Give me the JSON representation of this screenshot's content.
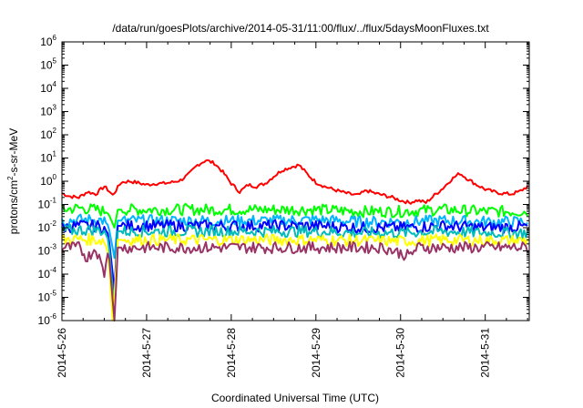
{
  "chart_data": {
    "type": "line",
    "title": "/data/run/goesPlots/archive/2014-05-31/11:00/flux/../flux/5daysMoonFluxes.txt",
    "xlabel": "Coordinated Universal Time (UTC)",
    "ylabel": {
      "base": "protons/cm",
      "sup": "2",
      "rest": "-s-sr-MeV"
    },
    "yscale": "log",
    "ylim_exp": [
      -6,
      6
    ],
    "y_ticks": [
      {
        "base": "10",
        "exp": "-6"
      },
      {
        "base": "10",
        "exp": "-5"
      },
      {
        "base": "10",
        "exp": "-4"
      },
      {
        "base": "10",
        "exp": "-3"
      },
      {
        "base": "10",
        "exp": "-2"
      },
      {
        "base": "10",
        "exp": "-1"
      },
      {
        "base": "10",
        "exp": "0"
      },
      {
        "base": "10",
        "exp": "1"
      },
      {
        "base": "10",
        "exp": "2"
      },
      {
        "base": "10",
        "exp": "3"
      },
      {
        "base": "10",
        "exp": "4"
      },
      {
        "base": "10",
        "exp": "5"
      },
      {
        "base": "10",
        "exp": "6"
      }
    ],
    "xlim_days": [
      26,
      31.52
    ],
    "x_ticks": [
      "2014-5-26",
      "2014-5-27",
      "2014-5-28",
      "2014-5-29",
      "2014-5-30",
      "2014-5-31"
    ],
    "grid": false,
    "series": [
      {
        "color": "#ff0000",
        "gap": false,
        "points": [
          [
            26.0,
            0.3
          ],
          [
            26.1,
            0.22
          ],
          [
            26.2,
            0.2
          ],
          [
            26.3,
            0.35
          ],
          [
            26.4,
            0.28
          ],
          [
            26.5,
            0.6
          ],
          [
            26.55,
            0.4
          ],
          [
            26.6,
            0.25
          ],
          [
            26.7,
            0.9
          ],
          [
            26.8,
            1.0
          ],
          [
            26.9,
            0.85
          ],
          [
            27.0,
            0.7
          ],
          [
            27.1,
            0.8
          ],
          [
            27.2,
            0.8
          ],
          [
            27.3,
            0.9
          ],
          [
            27.4,
            1.1
          ],
          [
            27.5,
            2.0
          ],
          [
            27.6,
            5.0
          ],
          [
            27.7,
            8.0
          ],
          [
            27.8,
            6.0
          ],
          [
            27.9,
            2.5
          ],
          [
            28.0,
            0.8
          ],
          [
            28.1,
            0.35
          ],
          [
            28.2,
            0.7
          ],
          [
            28.3,
            0.6
          ],
          [
            28.4,
            0.8
          ],
          [
            28.5,
            1.6
          ],
          [
            28.6,
            3.0
          ],
          [
            28.7,
            4.0
          ],
          [
            28.8,
            5.0
          ],
          [
            28.9,
            2.0
          ],
          [
            29.0,
            0.9
          ],
          [
            29.1,
            0.6
          ],
          [
            29.2,
            0.45
          ],
          [
            29.3,
            0.35
          ],
          [
            29.4,
            0.28
          ],
          [
            29.5,
            0.25
          ],
          [
            29.6,
            0.4
          ],
          [
            29.7,
            0.3
          ],
          [
            29.8,
            0.25
          ],
          [
            29.9,
            0.2
          ],
          [
            30.0,
            0.15
          ],
          [
            30.1,
            0.12
          ],
          [
            30.2,
            0.15
          ],
          [
            30.3,
            0.12
          ],
          [
            30.4,
            0.25
          ],
          [
            30.5,
            0.5
          ],
          [
            30.6,
            1.2
          ],
          [
            30.7,
            2.2
          ],
          [
            30.8,
            1.2
          ],
          [
            30.9,
            0.7
          ],
          [
            31.0,
            0.45
          ],
          [
            31.1,
            0.35
          ],
          [
            31.2,
            0.3
          ],
          [
            31.3,
            0.28
          ],
          [
            31.4,
            0.35
          ],
          [
            31.5,
            0.6
          ]
        ]
      },
      {
        "color": "#00ff00",
        "gap": true,
        "points": [
          [
            26.0,
            0.06
          ],
          [
            26.2,
            0.07
          ],
          [
            26.4,
            0.06
          ],
          [
            26.5,
            0.05
          ],
          [
            26.55,
            0.04
          ],
          [
            26.62,
            0.01
          ],
          [
            26.66,
            0.06
          ],
          [
            27.0,
            0.06
          ],
          [
            27.5,
            0.06
          ],
          [
            28.0,
            0.06
          ],
          [
            28.5,
            0.06
          ],
          [
            29.0,
            0.06
          ],
          [
            29.5,
            0.05
          ],
          [
            30.0,
            0.05
          ],
          [
            30.5,
            0.06
          ],
          [
            31.0,
            0.05
          ],
          [
            31.5,
            0.05
          ]
        ]
      },
      {
        "color": "#00b4ff",
        "gap": true,
        "points": [
          [
            26.0,
            0.02
          ],
          [
            26.2,
            0.022
          ],
          [
            26.4,
            0.022
          ],
          [
            26.5,
            0.02
          ],
          [
            26.55,
            0.012
          ],
          [
            26.62,
            0.0005
          ],
          [
            26.66,
            0.02
          ],
          [
            27.0,
            0.02
          ],
          [
            27.5,
            0.02
          ],
          [
            28.0,
            0.02
          ],
          [
            28.5,
            0.02
          ],
          [
            29.0,
            0.022
          ],
          [
            29.5,
            0.018
          ],
          [
            30.0,
            0.018
          ],
          [
            30.5,
            0.02
          ],
          [
            31.0,
            0.018
          ],
          [
            31.5,
            0.018
          ]
        ]
      },
      {
        "color": "#0000ff",
        "gap": true,
        "points": [
          [
            26.0,
            0.01
          ],
          [
            26.2,
            0.012
          ],
          [
            26.4,
            0.012
          ],
          [
            26.5,
            0.01
          ],
          [
            26.55,
            0.005
          ],
          [
            26.62,
            2e-05
          ],
          [
            26.66,
            0.012
          ],
          [
            27.0,
            0.012
          ],
          [
            27.5,
            0.012
          ],
          [
            28.0,
            0.012
          ],
          [
            28.5,
            0.012
          ],
          [
            29.0,
            0.012
          ],
          [
            29.5,
            0.01
          ],
          [
            30.0,
            0.01
          ],
          [
            30.5,
            0.012
          ],
          [
            31.0,
            0.01
          ],
          [
            31.5,
            0.011
          ]
        ]
      },
      {
        "color": "#00bbbb",
        "gap": true,
        "points": [
          [
            26.0,
            0.007
          ],
          [
            26.2,
            0.008
          ],
          [
            26.4,
            0.008
          ],
          [
            26.5,
            0.007
          ],
          [
            26.55,
            0.003
          ],
          [
            26.62,
            3e-06
          ],
          [
            26.66,
            0.007
          ],
          [
            27.0,
            0.007
          ],
          [
            27.5,
            0.007
          ],
          [
            28.0,
            0.007
          ],
          [
            28.5,
            0.007
          ],
          [
            29.0,
            0.007
          ],
          [
            29.5,
            0.006
          ],
          [
            30.0,
            0.006
          ],
          [
            30.5,
            0.007
          ],
          [
            31.0,
            0.006
          ],
          [
            31.5,
            0.006
          ]
        ]
      },
      {
        "color": "#ffff00",
        "gap": true,
        "points": [
          [
            26.0,
            0.003
          ],
          [
            26.2,
            0.0032
          ],
          [
            26.4,
            0.003
          ],
          [
            26.5,
            0.0028
          ],
          [
            26.55,
            0.0007
          ],
          [
            26.6,
            8e-07
          ],
          [
            26.66,
            0.003
          ],
          [
            27.0,
            0.003
          ],
          [
            27.5,
            0.003
          ],
          [
            28.0,
            0.003
          ],
          [
            28.5,
            0.003
          ],
          [
            29.0,
            0.003
          ],
          [
            29.5,
            0.0028
          ],
          [
            30.0,
            0.0026
          ],
          [
            30.5,
            0.003
          ],
          [
            31.0,
            0.0028
          ],
          [
            31.5,
            0.0028
          ]
        ]
      },
      {
        "color": "#993366",
        "gap": true,
        "points": [
          [
            26.0,
            0.0014
          ],
          [
            26.2,
            0.0014
          ],
          [
            26.3,
            0.0005
          ],
          [
            26.4,
            0.0014
          ],
          [
            26.5,
            0.0001
          ],
          [
            26.55,
            0.0013
          ],
          [
            26.62,
            8e-07
          ],
          [
            26.66,
            0.0014
          ],
          [
            27.0,
            0.0014
          ],
          [
            27.5,
            0.0014
          ],
          [
            28.0,
            0.0014
          ],
          [
            28.5,
            0.0014
          ],
          [
            29.0,
            0.0014
          ],
          [
            29.5,
            0.0014
          ],
          [
            29.8,
            0.0014
          ],
          [
            30.1,
            0.0006
          ],
          [
            30.2,
            0.0014
          ],
          [
            30.5,
            0.0014
          ],
          [
            31.0,
            0.0014
          ],
          [
            31.5,
            0.0014
          ]
        ]
      }
    ]
  }
}
